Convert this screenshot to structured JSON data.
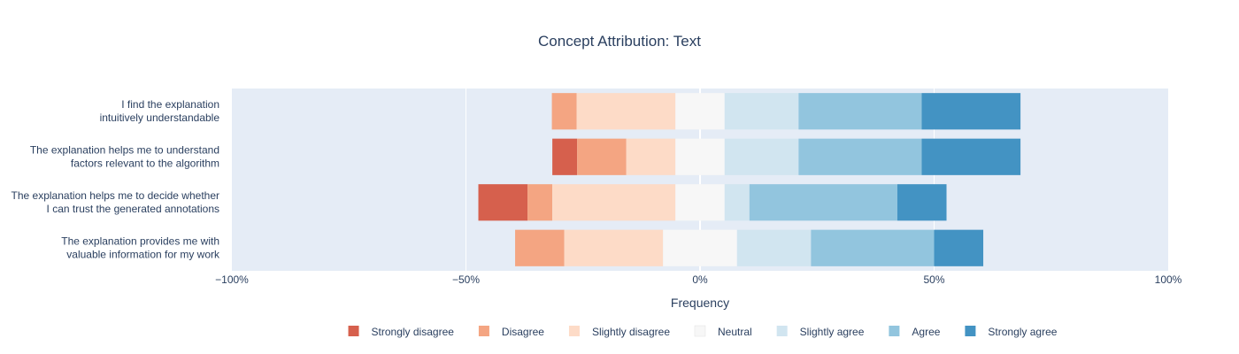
{
  "chart_data": {
    "type": "bar",
    "orientation": "horizontal-stacked-diverging",
    "title": "Concept Attribution: Text",
    "xlabel": "Frequency",
    "ylabel": "",
    "xlim": [
      -100,
      100
    ],
    "xticks": [
      -100,
      -50,
      0,
      50,
      100
    ],
    "xtick_labels": [
      "−100%",
      "−50%",
      "0%",
      "50%",
      "100%"
    ],
    "grid": true,
    "legend_position": "bottom",
    "categories": [
      [
        "I find the explanation",
        "intuitively understandable"
      ],
      [
        "The explanation helps me to understand",
        "factors relevant to the algorithm"
      ],
      [
        "The explanation helps me to decide whether",
        "I can trust the generated annotations"
      ],
      [
        "The explanation provides me with",
        "valuable information for my work"
      ]
    ],
    "series": [
      {
        "name": "Strongly disagree",
        "color": "#d6604d",
        "values": [
          0,
          5.3,
          10.5,
          0
        ]
      },
      {
        "name": "Disagree",
        "color": "#f4a582",
        "values": [
          5.3,
          10.5,
          5.3,
          10.5
        ]
      },
      {
        "name": "Slightly disagree",
        "color": "#fddbc7",
        "values": [
          21.1,
          10.5,
          26.3,
          21.1
        ]
      },
      {
        "name": "Neutral",
        "color": "#f7f7f7",
        "values": [
          10.5,
          10.5,
          10.5,
          15.8
        ]
      },
      {
        "name": "Slightly agree",
        "color": "#d1e5f0",
        "values": [
          15.8,
          15.8,
          5.3,
          15.8
        ]
      },
      {
        "name": "Agree",
        "color": "#92c5de",
        "values": [
          26.3,
          26.3,
          31.6,
          26.3
        ]
      },
      {
        "name": "Strongly agree",
        "color": "#4393c3",
        "values": [
          21.1,
          21.1,
          10.5,
          10.5
        ]
      }
    ]
  }
}
